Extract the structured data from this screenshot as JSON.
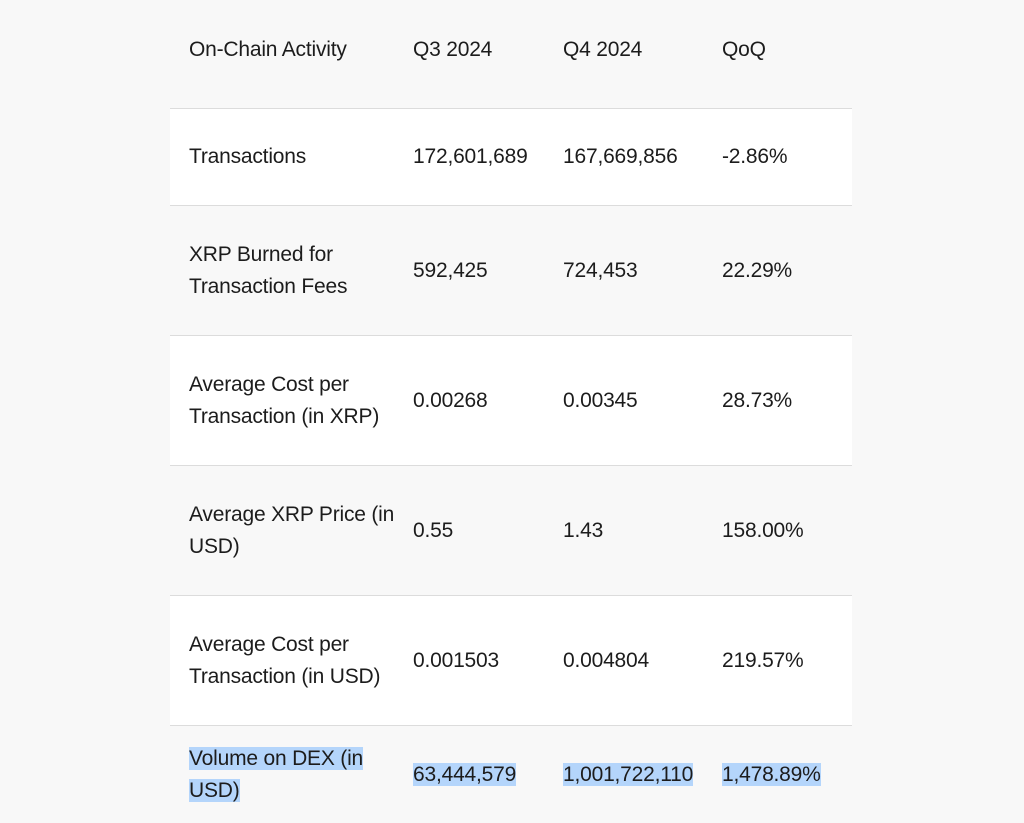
{
  "table": {
    "headers": [
      "On-Chain Activity",
      "Q3 2024",
      "Q4 2024",
      "QoQ"
    ],
    "rows": [
      {
        "label": "Transactions",
        "q3": "172,601,689",
        "q4": "167,669,856",
        "qoq": "-2.86%"
      },
      {
        "label": "XRP Burned for Transaction Fees",
        "q3": "592,425",
        "q4": "724,453",
        "qoq": "22.29%"
      },
      {
        "label": "Average Cost per Transaction (in XRP)",
        "q3": "0.00268",
        "q4": "0.00345",
        "qoq": "28.73%"
      },
      {
        "label": "Average XRP Price (in USD)",
        "q3": "0.55",
        "q4": "1.43",
        "qoq": "158.00%"
      },
      {
        "label": "Average Cost per Transaction (in USD)",
        "q3": "0.001503",
        "q4": "0.004804",
        "qoq": "219.57%"
      },
      {
        "label": "Volume on DEX (in USD)",
        "q3": "63,444,579",
        "q4": "1,001,722,110",
        "qoq": "1,478.89%"
      }
    ]
  },
  "colors": {
    "text": "#1c1c1c",
    "row_white": "#ffffff",
    "row_grey": "#f8f8f8",
    "divider": "#dcdcdc",
    "selection": "#b4d5fb"
  }
}
